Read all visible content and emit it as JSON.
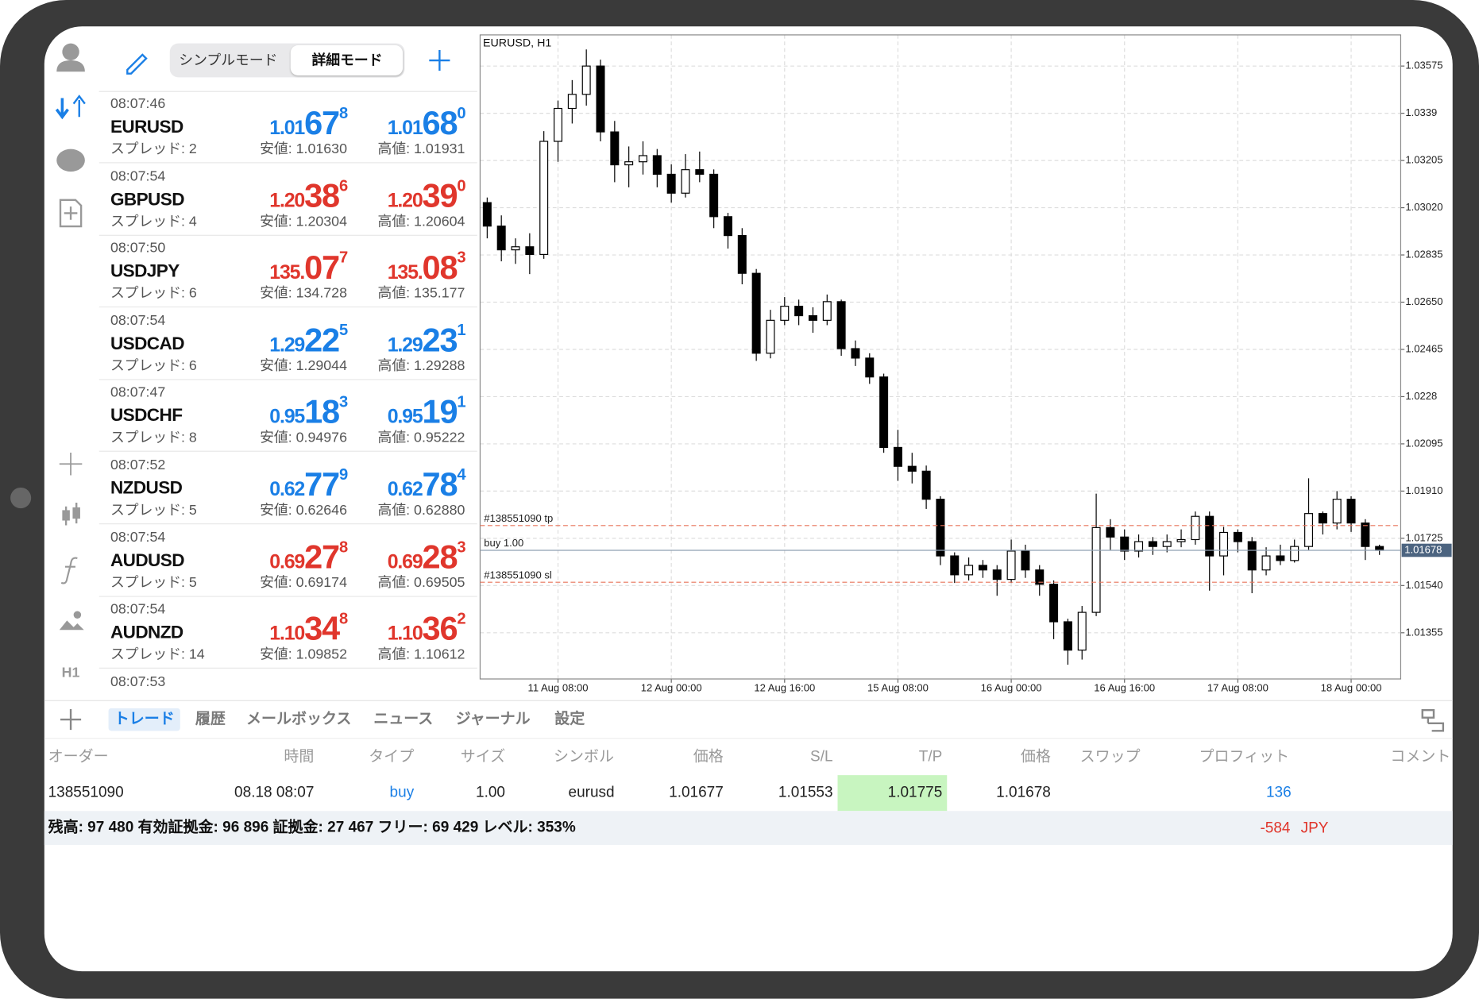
{
  "header": {
    "modes": [
      "シンプルモード",
      "詳細モード"
    ]
  },
  "sidebar": {
    "timeframe": "H1"
  },
  "quotes": [
    {
      "time": "08:07:46",
      "symbol": "EURUSD",
      "color": "#1a7fe6",
      "bid": {
        "pre": "1.01",
        "big": "67",
        "sup": "8"
      },
      "ask": {
        "pre": "1.01",
        "big": "68",
        "sup": "0"
      },
      "spread": "スプレッド: 2",
      "low": "安値: 1.01630",
      "high": "高値: 1.01931"
    },
    {
      "time": "08:07:54",
      "symbol": "GBPUSD",
      "color": "#e0362c",
      "bid": {
        "pre": "1.20",
        "big": "38",
        "sup": "6"
      },
      "ask": {
        "pre": "1.20",
        "big": "39",
        "sup": "0"
      },
      "spread": "スプレッド: 4",
      "low": "安値: 1.20304",
      "high": "高値: 1.20604"
    },
    {
      "time": "08:07:50",
      "symbol": "USDJPY",
      "color": "#e0362c",
      "bid": {
        "pre": "135.",
        "big": "07",
        "sup": "7"
      },
      "ask": {
        "pre": "135.",
        "big": "08",
        "sup": "3"
      },
      "spread": "スプレッド: 6",
      "low": "安値: 134.728",
      "high": "高値: 135.177"
    },
    {
      "time": "08:07:54",
      "symbol": "USDCAD",
      "color": "#1a7fe6",
      "bid": {
        "pre": "1.29",
        "big": "22",
        "sup": "5"
      },
      "ask": {
        "pre": "1.29",
        "big": "23",
        "sup": "1"
      },
      "spread": "スプレッド: 6",
      "low": "安値: 1.29044",
      "high": "高値: 1.29288"
    },
    {
      "time": "08:07:47",
      "symbol": "USDCHF",
      "color": "#1a7fe6",
      "bid": {
        "pre": "0.95",
        "big": "18",
        "sup": "3"
      },
      "ask": {
        "pre": "0.95",
        "big": "19",
        "sup": "1"
      },
      "spread": "スプレッド: 8",
      "low": "安値: 0.94976",
      "high": "高値: 0.95222"
    },
    {
      "time": "08:07:52",
      "symbol": "NZDUSD",
      "color": "#1a7fe6",
      "bid": {
        "pre": "0.62",
        "big": "77",
        "sup": "9"
      },
      "ask": {
        "pre": "0.62",
        "big": "78",
        "sup": "4"
      },
      "spread": "スプレッド: 5",
      "low": "安値: 0.62646",
      "high": "高値: 0.62880"
    },
    {
      "time": "08:07:54",
      "symbol": "AUDUSD",
      "color": "#e0362c",
      "bid": {
        "pre": "0.69",
        "big": "27",
        "sup": "8"
      },
      "ask": {
        "pre": "0.69",
        "big": "28",
        "sup": "3"
      },
      "spread": "スプレッド: 5",
      "low": "安値: 0.69174",
      "high": "高値: 0.69505"
    },
    {
      "time": "08:07:54",
      "symbol": "AUDNZD",
      "color": "#e0362c",
      "bid": {
        "pre": "1.10",
        "big": "34",
        "sup": "8"
      },
      "ask": {
        "pre": "1.10",
        "big": "36",
        "sup": "2"
      },
      "spread": "スプレッド: 14",
      "low": "安値: 1.09852",
      "high": "高値: 1.10612"
    },
    {
      "time": "08:07:53"
    }
  ],
  "chart_data": {
    "type": "candlestick",
    "title": "EURUSD, H1",
    "xlim": [
      -0.5,
      64.5
    ],
    "xticks": [
      {
        "value": 5,
        "label": "11 Aug 08:00"
      },
      {
        "value": 13,
        "label": "12 Aug 00:00"
      },
      {
        "value": 21,
        "label": "12 Aug 16:00"
      },
      {
        "value": 29,
        "label": "15 Aug 08:00"
      },
      {
        "value": 37,
        "label": "16 Aug 00:00"
      },
      {
        "value": 45,
        "label": "16 Aug 16:00"
      },
      {
        "value": 53,
        "label": "17 Aug 08:00"
      },
      {
        "value": 61,
        "label": "18 Aug 00:00"
      }
    ],
    "ylim": [
      1.01174,
      1.03697
    ],
    "yticks": [
      1.03575,
      1.0339,
      1.03205,
      {
        "value": 1.0302,
        "label": "1.03020"
      },
      1.02835,
      {
        "value": 1.0265,
        "label": "1.02650"
      },
      1.02465,
      1.0228,
      1.02095,
      {
        "value": 1.0191,
        "label": "1.01910"
      },
      1.01725,
      {
        "value": 1.0154,
        "label": "1.01540"
      },
      1.01355
    ],
    "grid": true,
    "up_color": "#ffffff",
    "down_color": "#000000",
    "ohlc": [
      [
        1.0304,
        1.0306,
        1.029,
        1.02948
      ],
      [
        1.02948,
        1.0299,
        1.0281,
        1.02855
      ],
      [
        1.02855,
        1.029,
        1.028,
        1.02867
      ],
      [
        1.02867,
        1.0292,
        1.0276,
        1.02837
      ],
      [
        1.02837,
        1.0332,
        1.0282,
        1.0328
      ],
      [
        1.0328,
        1.0344,
        1.032,
        1.03409
      ],
      [
        1.03409,
        1.0352,
        1.0335,
        1.03464
      ],
      [
        1.03464,
        1.0364,
        1.0342,
        1.03575
      ],
      [
        1.03575,
        1.036,
        1.0328,
        1.03317
      ],
      [
        1.03317,
        1.0336,
        1.0312,
        1.03188
      ],
      [
        1.03188,
        1.0326,
        1.031,
        1.032
      ],
      [
        1.032,
        1.0328,
        1.0315,
        1.03224
      ],
      [
        1.03224,
        1.0325,
        1.031,
        1.03151
      ],
      [
        1.03151,
        1.0319,
        1.0304,
        1.03077
      ],
      [
        1.03077,
        1.0323,
        1.0306,
        1.03169
      ],
      [
        1.03169,
        1.0324,
        1.0312,
        1.03151
      ],
      [
        1.03151,
        1.0317,
        1.0294,
        1.02985
      ],
      [
        1.02985,
        1.03,
        1.0286,
        1.02911
      ],
      [
        1.02911,
        1.0294,
        1.0272,
        1.02763
      ],
      [
        1.02763,
        1.0278,
        1.0242,
        1.0245
      ],
      [
        1.0245,
        1.0262,
        1.0243,
        1.02579
      ],
      [
        1.02579,
        1.0267,
        1.0256,
        1.02634
      ],
      [
        1.02634,
        1.0266,
        1.0256,
        1.02597
      ],
      [
        1.02597,
        1.0263,
        1.0253,
        1.02579
      ],
      [
        1.02579,
        1.0268,
        1.0256,
        1.02652
      ],
      [
        1.02652,
        1.0266,
        1.0244,
        1.02468
      ],
      [
        1.02468,
        1.025,
        1.024,
        1.02431
      ],
      [
        1.02431,
        1.0245,
        1.0233,
        1.02357
      ],
      [
        1.02357,
        1.0237,
        1.0206,
        1.02081
      ],
      [
        1.02081,
        1.0215,
        1.0195,
        1.02007
      ],
      [
        1.02007,
        1.0206,
        1.0194,
        1.01988
      ],
      [
        1.01988,
        1.0201,
        1.0184,
        1.01878
      ],
      [
        1.01878,
        1.0189,
        1.0162,
        1.01656
      ],
      [
        1.01656,
        1.0167,
        1.0155,
        1.01582
      ],
      [
        1.01582,
        1.0165,
        1.0156,
        1.01619
      ],
      [
        1.01619,
        1.0164,
        1.0157,
        1.01601
      ],
      [
        1.01601,
        1.0162,
        1.015,
        1.01564
      ],
      [
        1.01564,
        1.0172,
        1.0155,
        1.01675
      ],
      [
        1.01675,
        1.017,
        1.0157,
        1.01601
      ],
      [
        1.01601,
        1.0162,
        1.015,
        1.01545
      ],
      [
        1.01545,
        1.0156,
        1.0133,
        1.01398
      ],
      [
        1.01398,
        1.0141,
        1.0123,
        1.01287
      ],
      [
        1.01287,
        1.0146,
        1.0125,
        1.01435
      ],
      [
        1.01435,
        1.019,
        1.0142,
        1.01767
      ],
      [
        1.01767,
        1.018,
        1.0168,
        1.0173
      ],
      [
        1.0173,
        1.0176,
        1.0164,
        1.01675
      ],
      [
        1.01675,
        1.0174,
        1.0165,
        1.01712
      ],
      [
        1.01712,
        1.0173,
        1.0166,
        1.01693
      ],
      [
        1.01693,
        1.0174,
        1.0167,
        1.01712
      ],
      [
        1.01712,
        1.0176,
        1.0169,
        1.0172
      ],
      [
        1.0172,
        1.0183,
        1.017,
        1.01811
      ],
      [
        1.01811,
        1.0183,
        1.0152,
        1.01656
      ],
      [
        1.01656,
        1.0177,
        1.0158,
        1.01748
      ],
      [
        1.01748,
        1.0176,
        1.0167,
        1.01712
      ],
      [
        1.01712,
        1.0173,
        1.0151,
        1.01601
      ],
      [
        1.01601,
        1.0169,
        1.0158,
        1.01656
      ],
      [
        1.01656,
        1.017,
        1.0162,
        1.01638
      ],
      [
        1.01638,
        1.0172,
        1.0163,
        1.01693
      ],
      [
        1.01693,
        1.0196,
        1.0168,
        1.01822
      ],
      [
        1.01822,
        1.0183,
        1.0174,
        1.01785
      ],
      [
        1.01785,
        1.0191,
        1.0176,
        1.01878
      ],
      [
        1.01878,
        1.0189,
        1.0175,
        1.01785
      ],
      [
        1.01785,
        1.018,
        1.0164,
        1.01693
      ],
      [
        1.01693,
        1.017,
        1.0166,
        1.01678
      ]
    ],
    "levels": [
      {
        "label": "#138551090 tp",
        "value": 1.01775,
        "color": "#e8735a",
        "dashed": true
      },
      {
        "label": "buy 1.00",
        "value": 1.01678,
        "color": "#8fa0b2",
        "dashed": false
      },
      {
        "label": "#138551090 sl",
        "value": 1.01553,
        "color": "#e8735a",
        "dashed": true
      }
    ],
    "current_price": 1.01678,
    "current_color": "#4c6480"
  },
  "tabs": [
    "トレード",
    "履歴",
    "メールボックス",
    "ニュース",
    "ジャーナル",
    "設定"
  ],
  "table": {
    "headers": {
      "order": "オーダー",
      "time": "時間",
      "type": "タイプ",
      "size": "サイズ",
      "symbol": "シンボル",
      "price": "価格",
      "sl": "S/L",
      "tp": "T/P",
      "current": "価格",
      "swap": "スワップ",
      "profit": "プロフィット",
      "comment": "コメント"
    },
    "row": {
      "order": "138551090",
      "time": "08.18 08:07",
      "type": "buy",
      "size": "1.00",
      "symbol": "eurusd",
      "price": "1.01677",
      "sl": "1.01553",
      "tp": "1.01775",
      "current": "1.01678",
      "profit": "136"
    }
  },
  "summary": {
    "text": "残高: 97 480 有効証拠金: 96 896 証拠金: 27 467 フリー: 69 429 レベル: 353%",
    "profit": "-584",
    "currency": "JPY"
  }
}
